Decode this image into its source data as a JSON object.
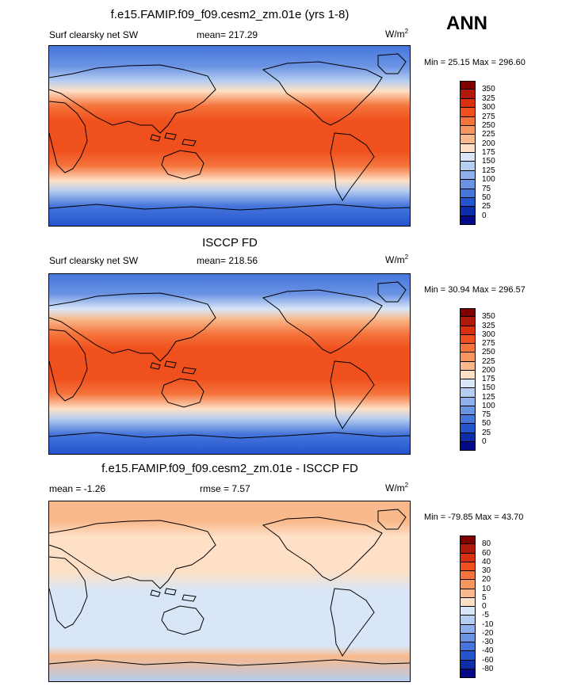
{
  "season": "ANN",
  "chart_data": [
    {
      "type": "heatmap",
      "title": "f.e15.FAMIP.f09_f09.cesm2_zm.01e (yrs 1-8)",
      "left_label": "Surf clearsky net SW",
      "center_label": "mean= 217.29",
      "units": "W/m",
      "units_sup": "2",
      "minmax": "Min =  25.15 Max = 296.60",
      "min": 25.15,
      "max": 296.6,
      "mean": 217.29,
      "levels": [
        "350",
        "325",
        "300",
        "275",
        "250",
        "225",
        "200",
        "175",
        "150",
        "125",
        "100",
        "75",
        "50",
        "25",
        "0"
      ],
      "colors": [
        "#7f0000",
        "#b01a0a",
        "#d9300f",
        "#f0501e",
        "#f5743c",
        "#f7955f",
        "#f9b98c",
        "#fde0c6",
        "#d8e6f7",
        "#b5cdf0",
        "#8fb0ea",
        "#6a93e3",
        "#4676dc",
        "#2554cf",
        "#0d2ea8",
        "#020a86"
      ],
      "gradient": [
        {
          "lat": 90,
          "v": 50
        },
        {
          "lat": 70,
          "v": 80
        },
        {
          "lat": 55,
          "v": 140
        },
        {
          "lat": 45,
          "v": 190
        },
        {
          "lat": 30,
          "v": 250
        },
        {
          "lat": 15,
          "v": 285
        },
        {
          "lat": 0,
          "v": 290
        },
        {
          "lat": -15,
          "v": 285
        },
        {
          "lat": -30,
          "v": 255
        },
        {
          "lat": -45,
          "v": 190
        },
        {
          "lat": -55,
          "v": 130
        },
        {
          "lat": -70,
          "v": 60
        },
        {
          "lat": -90,
          "v": 30
        }
      ]
    },
    {
      "type": "heatmap",
      "title": "ISCCP FD",
      "left_label": "Surf clearsky net SW",
      "center_label": "mean= 218.56",
      "units": "W/m",
      "units_sup": "2",
      "minmax": "Min =  30.94 Max = 296.57",
      "min": 30.94,
      "max": 296.57,
      "mean": 218.56,
      "levels": [
        "350",
        "325",
        "300",
        "275",
        "250",
        "225",
        "200",
        "175",
        "150",
        "125",
        "100",
        "75",
        "50",
        "25",
        "0"
      ],
      "colors": [
        "#7f0000",
        "#b01a0a",
        "#d9300f",
        "#f0501e",
        "#f5743c",
        "#f7955f",
        "#f9b98c",
        "#fde0c6",
        "#d8e6f7",
        "#b5cdf0",
        "#8fb0ea",
        "#6a93e3",
        "#4676dc",
        "#2554cf",
        "#0d2ea8",
        "#020a86"
      ],
      "gradient": [
        {
          "lat": 90,
          "v": 55
        },
        {
          "lat": 70,
          "v": 90
        },
        {
          "lat": 55,
          "v": 150
        },
        {
          "lat": 45,
          "v": 200
        },
        {
          "lat": 30,
          "v": 255
        },
        {
          "lat": 15,
          "v": 285
        },
        {
          "lat": 0,
          "v": 290
        },
        {
          "lat": -15,
          "v": 285
        },
        {
          "lat": -30,
          "v": 255
        },
        {
          "lat": -45,
          "v": 195
        },
        {
          "lat": -55,
          "v": 140
        },
        {
          "lat": -70,
          "v": 60
        },
        {
          "lat": -90,
          "v": 35
        }
      ]
    },
    {
      "type": "heatmap",
      "title": "f.e15.FAMIP.f09_f09.cesm2_zm.01e - ISCCP FD",
      "left_label": "mean =  -1.26",
      "center_label": "rmse =   7.57",
      "units": "W/m",
      "units_sup": "2",
      "minmax": "Min = -79.85 Max =  43.70",
      "min": -79.85,
      "max": 43.7,
      "mean": -1.26,
      "rmse": 7.57,
      "levels": [
        "80",
        "60",
        "40",
        "30",
        "20",
        "10",
        "5",
        "0",
        "-5",
        "-10",
        "-20",
        "-30",
        "-40",
        "-60",
        "-80"
      ],
      "colors": [
        "#7f0000",
        "#b01a0a",
        "#d9300f",
        "#f0501e",
        "#f5743c",
        "#f7955f",
        "#f9b98c",
        "#fde0c6",
        "#d8e6f7",
        "#b5cdf0",
        "#8fb0ea",
        "#6a93e3",
        "#4676dc",
        "#2554cf",
        "#0d2ea8",
        "#020a86"
      ],
      "gradient": [
        {
          "lat": 90,
          "v": 8
        },
        {
          "lat": 70,
          "v": 6
        },
        {
          "lat": 55,
          "v": 3
        },
        {
          "lat": 40,
          "v": 2
        },
        {
          "lat": 20,
          "v": 1
        },
        {
          "lat": 0,
          "v": -1
        },
        {
          "lat": -20,
          "v": -3
        },
        {
          "lat": -40,
          "v": -4
        },
        {
          "lat": -55,
          "v": -3
        },
        {
          "lat": -65,
          "v": 7
        },
        {
          "lat": -90,
          "v": -6
        }
      ]
    }
  ]
}
